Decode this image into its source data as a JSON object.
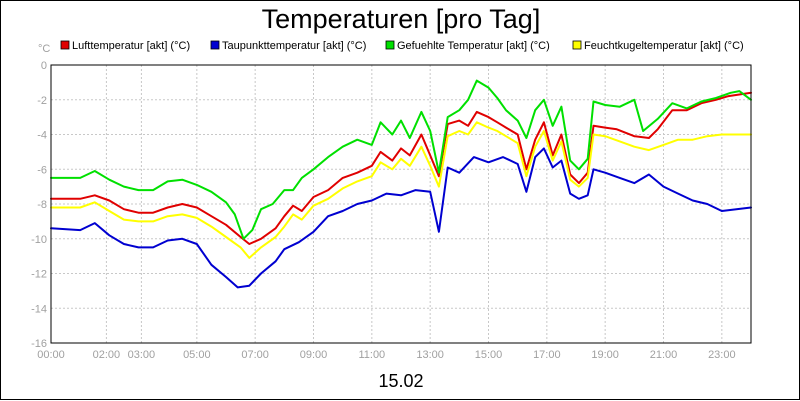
{
  "chart_data": {
    "type": "line",
    "title": "Temperaturen [pro Tag]",
    "unit_label": "°C",
    "date_label": "15.02",
    "ylim": [
      -16,
      0
    ],
    "y_ticks": [
      0,
      -2,
      -4,
      -6,
      -8,
      -10,
      -12,
      -14,
      -16
    ],
    "xlim": [
      0,
      24
    ],
    "x_ticks": [
      {
        "label": "00:00",
        "value": 0
      },
      {
        "label": "02:00",
        "value": 1.9
      },
      {
        "label": "03:00",
        "value": 3.1
      },
      {
        "label": "05:00",
        "value": 5
      },
      {
        "label": "07:00",
        "value": 7
      },
      {
        "label": "09:00",
        "value": 9
      },
      {
        "label": "11:00",
        "value": 11
      },
      {
        "label": "13:00",
        "value": 13
      },
      {
        "label": "15:00",
        "value": 15
      },
      {
        "label": "17:00",
        "value": 17
      },
      {
        "label": "19:00",
        "value": 19
      },
      {
        "label": "21:00",
        "value": 21
      },
      {
        "label": "23:00",
        "value": 23
      }
    ],
    "grid": true,
    "legend_position": "top",
    "series": [
      {
        "name": "Lufttemperatur [akt] (°C)",
        "color": "#e00000",
        "points": [
          [
            0,
            -7.7
          ],
          [
            1,
            -7.7
          ],
          [
            1.5,
            -7.5
          ],
          [
            2,
            -7.8
          ],
          [
            2.5,
            -8.3
          ],
          [
            3,
            -8.5
          ],
          [
            3.5,
            -8.5
          ],
          [
            4,
            -8.2
          ],
          [
            4.5,
            -8.0
          ],
          [
            5,
            -8.2
          ],
          [
            5.5,
            -8.7
          ],
          [
            6,
            -9.2
          ],
          [
            6.5,
            -9.9
          ],
          [
            6.8,
            -10.3
          ],
          [
            7.2,
            -10.0
          ],
          [
            7.7,
            -9.4
          ],
          [
            8,
            -8.7
          ],
          [
            8.3,
            -8.1
          ],
          [
            8.6,
            -8.4
          ],
          [
            9,
            -7.6
          ],
          [
            9.5,
            -7.2
          ],
          [
            10,
            -6.5
          ],
          [
            10.5,
            -6.2
          ],
          [
            11,
            -5.8
          ],
          [
            11.3,
            -5.0
          ],
          [
            11.7,
            -5.5
          ],
          [
            12,
            -4.8
          ],
          [
            12.3,
            -5.2
          ],
          [
            12.7,
            -4.0
          ],
          [
            13,
            -5.2
          ],
          [
            13.3,
            -6.4
          ],
          [
            13.6,
            -3.4
          ],
          [
            14,
            -3.2
          ],
          [
            14.3,
            -3.5
          ],
          [
            14.6,
            -2.7
          ],
          [
            15,
            -3.0
          ],
          [
            15.3,
            -3.3
          ],
          [
            15.6,
            -3.6
          ],
          [
            16,
            -4.0
          ],
          [
            16.3,
            -6.0
          ],
          [
            16.6,
            -4.3
          ],
          [
            16.9,
            -3.3
          ],
          [
            17.2,
            -5.2
          ],
          [
            17.5,
            -4.0
          ],
          [
            17.8,
            -6.3
          ],
          [
            18.1,
            -6.8
          ],
          [
            18.4,
            -6.2
          ],
          [
            18.6,
            -3.5
          ],
          [
            19,
            -3.6
          ],
          [
            19.4,
            -3.7
          ],
          [
            20,
            -4.1
          ],
          [
            20.5,
            -4.2
          ],
          [
            20.8,
            -3.7
          ],
          [
            21.3,
            -2.6
          ],
          [
            21.8,
            -2.6
          ],
          [
            22.3,
            -2.2
          ],
          [
            22.8,
            -2.0
          ],
          [
            23.2,
            -1.8
          ],
          [
            23.6,
            -1.7
          ],
          [
            24,
            -1.6
          ]
        ]
      },
      {
        "name": "Taupunkttemperatur [akt] (°C)",
        "color": "#0000d0",
        "points": [
          [
            0,
            -9.4
          ],
          [
            1,
            -9.5
          ],
          [
            1.5,
            -9.1
          ],
          [
            2,
            -9.8
          ],
          [
            2.5,
            -10.3
          ],
          [
            3,
            -10.5
          ],
          [
            3.5,
            -10.5
          ],
          [
            4,
            -10.1
          ],
          [
            4.5,
            -10.0
          ],
          [
            5,
            -10.3
          ],
          [
            5.5,
            -11.5
          ],
          [
            6,
            -12.2
          ],
          [
            6.4,
            -12.8
          ],
          [
            6.8,
            -12.7
          ],
          [
            7.2,
            -12.0
          ],
          [
            7.7,
            -11.3
          ],
          [
            8,
            -10.6
          ],
          [
            8.5,
            -10.2
          ],
          [
            9,
            -9.6
          ],
          [
            9.5,
            -8.7
          ],
          [
            10,
            -8.4
          ],
          [
            10.5,
            -8.0
          ],
          [
            11,
            -7.8
          ],
          [
            11.5,
            -7.4
          ],
          [
            12,
            -7.5
          ],
          [
            12.5,
            -7.2
          ],
          [
            13,
            -7.3
          ],
          [
            13.3,
            -9.6
          ],
          [
            13.6,
            -5.9
          ],
          [
            14,
            -6.2
          ],
          [
            14.5,
            -5.3
          ],
          [
            15,
            -5.6
          ],
          [
            15.5,
            -5.3
          ],
          [
            16,
            -5.7
          ],
          [
            16.3,
            -7.3
          ],
          [
            16.6,
            -5.3
          ],
          [
            16.9,
            -4.8
          ],
          [
            17.2,
            -5.9
          ],
          [
            17.5,
            -5.5
          ],
          [
            17.8,
            -7.4
          ],
          [
            18.1,
            -7.7
          ],
          [
            18.4,
            -7.5
          ],
          [
            18.6,
            -6.0
          ],
          [
            19,
            -6.2
          ],
          [
            19.5,
            -6.5
          ],
          [
            20,
            -6.8
          ],
          [
            20.5,
            -6.3
          ],
          [
            21,
            -7.0
          ],
          [
            21.5,
            -7.4
          ],
          [
            22,
            -7.8
          ],
          [
            22.5,
            -8.0
          ],
          [
            23,
            -8.4
          ],
          [
            23.5,
            -8.3
          ],
          [
            24,
            -8.2
          ]
        ]
      },
      {
        "name": "Gefuehlte Temperatur [akt] (°C)",
        "color": "#00e000",
        "points": [
          [
            0,
            -6.5
          ],
          [
            1,
            -6.5
          ],
          [
            1.5,
            -6.1
          ],
          [
            2,
            -6.6
          ],
          [
            2.5,
            -7.0
          ],
          [
            3,
            -7.2
          ],
          [
            3.5,
            -7.2
          ],
          [
            4,
            -6.7
          ],
          [
            4.5,
            -6.6
          ],
          [
            5,
            -6.9
          ],
          [
            5.5,
            -7.3
          ],
          [
            6,
            -7.9
          ],
          [
            6.3,
            -8.6
          ],
          [
            6.6,
            -10.0
          ],
          [
            6.9,
            -9.5
          ],
          [
            7.2,
            -8.3
          ],
          [
            7.6,
            -8.0
          ],
          [
            8,
            -7.2
          ],
          [
            8.3,
            -7.2
          ],
          [
            8.6,
            -6.5
          ],
          [
            9,
            -6.0
          ],
          [
            9.5,
            -5.3
          ],
          [
            10,
            -4.7
          ],
          [
            10.5,
            -4.3
          ],
          [
            11,
            -4.6
          ],
          [
            11.3,
            -3.3
          ],
          [
            11.7,
            -4.0
          ],
          [
            12,
            -3.2
          ],
          [
            12.3,
            -4.2
          ],
          [
            12.7,
            -2.7
          ],
          [
            13,
            -3.8
          ],
          [
            13.3,
            -6.2
          ],
          [
            13.6,
            -3.0
          ],
          [
            14,
            -2.6
          ],
          [
            14.3,
            -2.0
          ],
          [
            14.6,
            -0.9
          ],
          [
            15,
            -1.3
          ],
          [
            15.3,
            -1.9
          ],
          [
            15.6,
            -2.6
          ],
          [
            16,
            -3.2
          ],
          [
            16.3,
            -4.2
          ],
          [
            16.6,
            -2.6
          ],
          [
            16.9,
            -2.0
          ],
          [
            17.2,
            -3.5
          ],
          [
            17.5,
            -2.4
          ],
          [
            17.8,
            -5.5
          ],
          [
            18.1,
            -6.0
          ],
          [
            18.4,
            -5.4
          ],
          [
            18.6,
            -2.1
          ],
          [
            19,
            -2.3
          ],
          [
            19.5,
            -2.4
          ],
          [
            20,
            -2.0
          ],
          [
            20.3,
            -3.8
          ],
          [
            20.8,
            -3.1
          ],
          [
            21.3,
            -2.2
          ],
          [
            21.8,
            -2.5
          ],
          [
            22.3,
            -2.1
          ],
          [
            22.8,
            -1.9
          ],
          [
            23.3,
            -1.6
          ],
          [
            23.6,
            -1.5
          ],
          [
            24,
            -2.0
          ]
        ]
      },
      {
        "name": "Feuchtkugeltemperatur [akt] (°C)",
        "color": "#ffff00",
        "points": [
          [
            0,
            -8.2
          ],
          [
            1,
            -8.2
          ],
          [
            1.5,
            -7.9
          ],
          [
            2,
            -8.4
          ],
          [
            2.5,
            -8.9
          ],
          [
            3,
            -9.0
          ],
          [
            3.5,
            -9.0
          ],
          [
            4,
            -8.7
          ],
          [
            4.5,
            -8.6
          ],
          [
            5,
            -8.8
          ],
          [
            5.5,
            -9.3
          ],
          [
            6,
            -9.9
          ],
          [
            6.5,
            -10.5
          ],
          [
            6.8,
            -11.1
          ],
          [
            7.2,
            -10.5
          ],
          [
            7.7,
            -9.9
          ],
          [
            8,
            -9.3
          ],
          [
            8.3,
            -8.6
          ],
          [
            8.6,
            -8.9
          ],
          [
            9,
            -8.1
          ],
          [
            9.5,
            -7.7
          ],
          [
            10,
            -7.1
          ],
          [
            10.5,
            -6.7
          ],
          [
            11,
            -6.4
          ],
          [
            11.3,
            -5.6
          ],
          [
            11.7,
            -6.0
          ],
          [
            12,
            -5.4
          ],
          [
            12.3,
            -5.8
          ],
          [
            12.7,
            -4.7
          ],
          [
            13,
            -5.8
          ],
          [
            13.3,
            -7.0
          ],
          [
            13.6,
            -4.1
          ],
          [
            14,
            -3.8
          ],
          [
            14.3,
            -4.0
          ],
          [
            14.6,
            -3.3
          ],
          [
            15,
            -3.6
          ],
          [
            15.3,
            -3.8
          ],
          [
            15.6,
            -4.1
          ],
          [
            16,
            -4.5
          ],
          [
            16.3,
            -6.4
          ],
          [
            16.6,
            -4.7
          ],
          [
            16.9,
            -3.8
          ],
          [
            17.2,
            -5.5
          ],
          [
            17.5,
            -4.4
          ],
          [
            17.8,
            -6.6
          ],
          [
            18.1,
            -7.0
          ],
          [
            18.4,
            -6.5
          ],
          [
            18.6,
            -4.0
          ],
          [
            19,
            -4.1
          ],
          [
            19.5,
            -4.4
          ],
          [
            20,
            -4.7
          ],
          [
            20.5,
            -4.9
          ],
          [
            21,
            -4.6
          ],
          [
            21.5,
            -4.3
          ],
          [
            22,
            -4.3
          ],
          [
            22.5,
            -4.1
          ],
          [
            23,
            -4.0
          ],
          [
            23.5,
            -4.0
          ],
          [
            24,
            -4.0
          ]
        ]
      }
    ]
  }
}
